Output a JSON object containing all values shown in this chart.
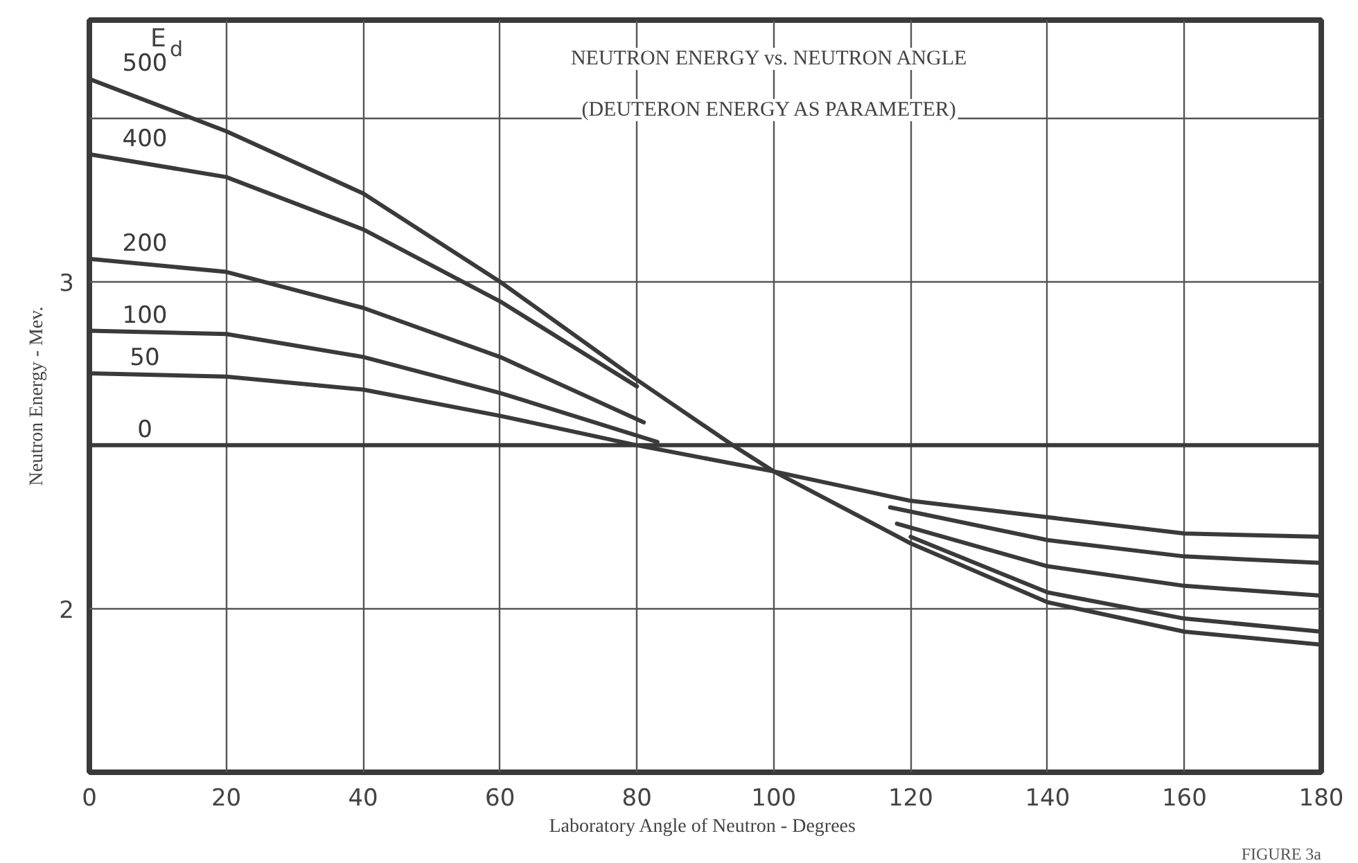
{
  "chart_data": {
    "type": "line",
    "title": "NEUTRON ENERGY vs. NEUTRON ANGLE",
    "subtitle": "(DEUTERON ENERGY AS PARAMETER)",
    "xlabel": "Laboratory  Angle of Neutron - Degrees",
    "ylabel": "Neutron Energy - Mev.",
    "legend_title": "E$_{d}$",
    "annotations": [
      "FIGURE 3a"
    ],
    "xlim": [
      0,
      180
    ],
    "ylim": [
      1.5,
      3.8
    ],
    "xticks": [
      0,
      20,
      40,
      60,
      80,
      100,
      120,
      140,
      160,
      180
    ],
    "yticks": [
      {
        "value": 1.5,
        "label": null
      },
      2,
      {
        "value": 2.5,
        "label": null
      },
      3,
      {
        "value": 3.5,
        "label": null
      }
    ],
    "grid": true,
    "marker": "none",
    "line_style": "solid",
    "series": [
      {
        "name": "500",
        "color": "#3a3a3a",
        "x": [
          0,
          20,
          40,
          60,
          80,
          94,
          100,
          120,
          140,
          160,
          180
        ],
        "values": [
          3.62,
          3.46,
          3.27,
          3.0,
          2.7,
          2.5,
          2.42,
          2.2,
          2.02,
          1.93,
          1.89
        ]
      },
      {
        "name": "400",
        "color": "#3a3a3a",
        "x": [
          0,
          20,
          40,
          60,
          80,
          100,
          120,
          140,
          160,
          180
        ],
        "values": [
          3.39,
          3.32,
          3.16,
          2.94,
          2.68,
          null,
          2.22,
          2.05,
          1.97,
          1.93
        ]
      },
      {
        "name": "200",
        "color": "#3a3a3a",
        "x": [
          0,
          20,
          40,
          60,
          81,
          100,
          118,
          140,
          160,
          180
        ],
        "values": [
          3.07,
          3.03,
          2.92,
          2.77,
          2.57,
          null,
          2.26,
          2.13,
          2.07,
          2.04
        ]
      },
      {
        "name": "100",
        "color": "#3a3a3a",
        "x": [
          0,
          20,
          40,
          60,
          83,
          100,
          117,
          140,
          160,
          180
        ],
        "values": [
          2.85,
          2.84,
          2.77,
          2.66,
          2.51,
          null,
          2.31,
          2.21,
          2.16,
          2.14
        ]
      },
      {
        "name": "50",
        "color": "#3a3a3a",
        "x": [
          0,
          20,
          40,
          60,
          80,
          100,
          120,
          140,
          160,
          180
        ],
        "values": [
          2.72,
          2.71,
          2.67,
          2.59,
          2.5,
          2.42,
          2.33,
          2.28,
          2.23,
          2.22
        ]
      },
      {
        "name": "0",
        "color": "#3a3a3a",
        "x": [
          0,
          180
        ],
        "values": [
          2.5,
          2.5
        ]
      }
    ]
  }
}
